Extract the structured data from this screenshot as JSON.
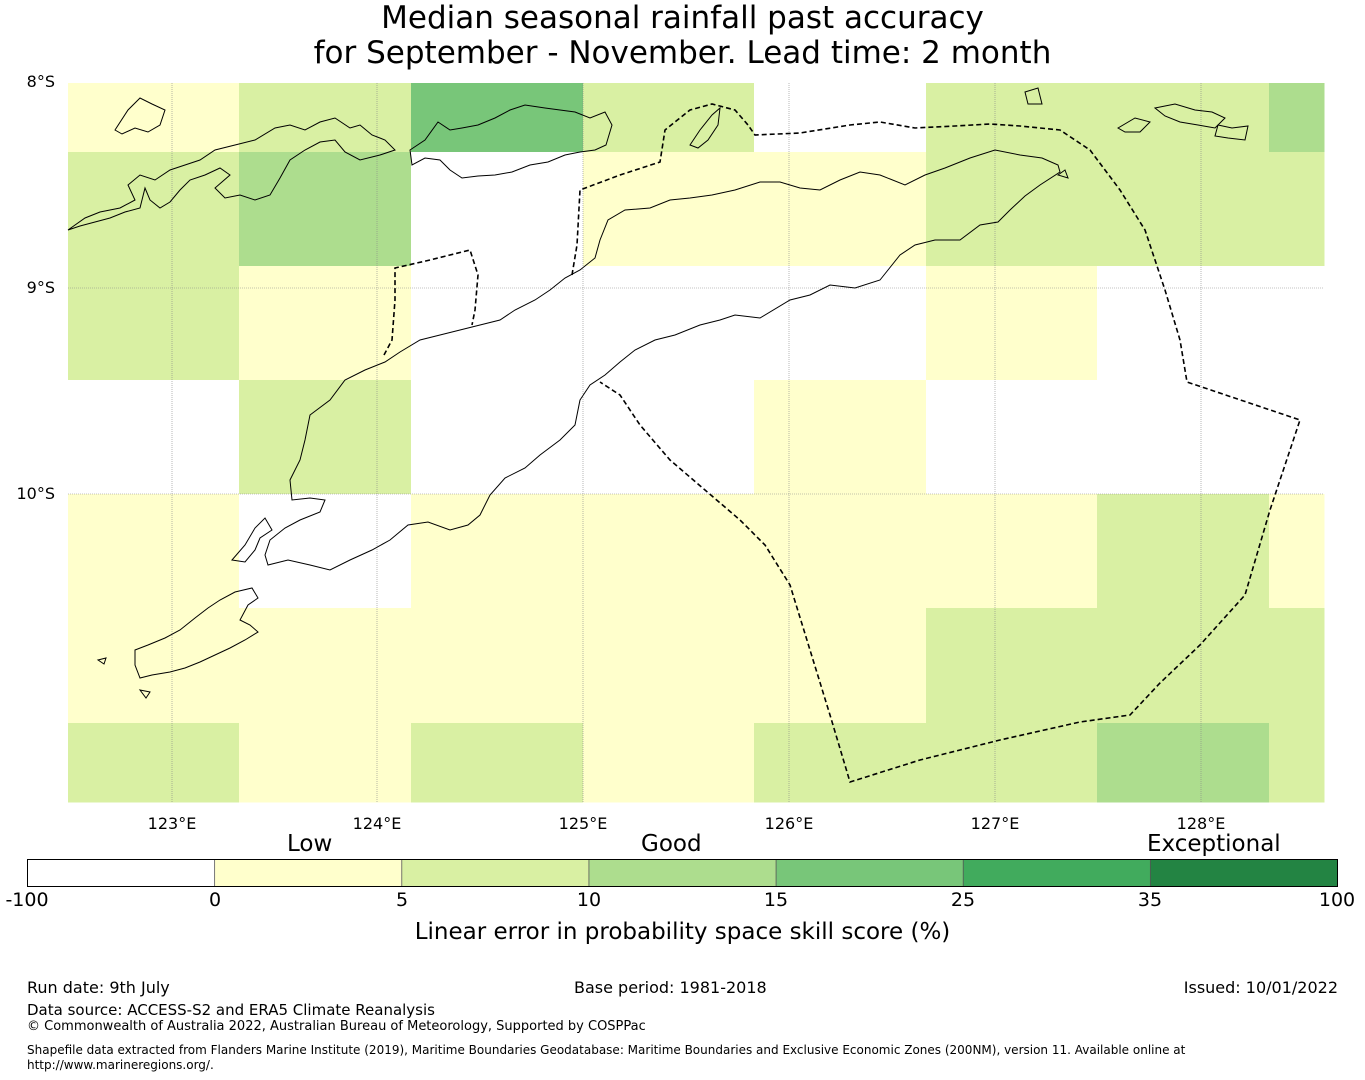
{
  "title": {
    "line1": "Median seasonal rainfall past accuracy",
    "line2": "for September - November. Lead time: 2 month"
  },
  "map": {
    "lat_labels": [
      "8°S",
      "9°S",
      "10°S"
    ],
    "lon_labels": [
      "123°E",
      "124°E",
      "125°E",
      "126°E",
      "127°E",
      "128°E"
    ],
    "grid_colors": {
      "white": "#ffffff",
      "c0_5": "#ffffcc",
      "c5_10": "#d9f0a3",
      "c10_15": "#addd8e",
      "c15_25": "#78c679",
      "c25_35": "#41ab5d",
      "c35_100": "#238443"
    },
    "cells": [
      [
        "c0_5",
        "c5_10",
        "c15_25",
        "c5_10",
        "white",
        "c5_10",
        "c5_10",
        "c10_15"
      ],
      [
        "c5_10",
        "c10_15",
        "white",
        "c0_5",
        "c0_5",
        "c5_10",
        "c5_10",
        "c5_10"
      ],
      [
        "c5_10",
        "c0_5",
        "white",
        "white",
        "white",
        "c0_5",
        "white",
        "white"
      ],
      [
        "white",
        "c5_10",
        "white",
        "white",
        "c0_5",
        "white",
        "white",
        "white"
      ],
      [
        "c0_5",
        "white",
        "c0_5",
        "c0_5",
        "c0_5",
        "c0_5",
        "c5_10",
        "c0_5"
      ],
      [
        "c0_5",
        "c0_5",
        "c0_5",
        "c0_5",
        "c0_5",
        "c5_10",
        "c5_10",
        "c5_10"
      ],
      [
        "c5_10",
        "c0_5",
        "c5_10",
        "c0_5",
        "c5_10",
        "c5_10",
        "c10_15",
        "c5_10"
      ]
    ]
  },
  "legend": {
    "categories": [
      "Low",
      "Good",
      "Exceptional"
    ],
    "ticks": [
      "-100",
      "0",
      "5",
      "10",
      "15",
      "25",
      "35",
      "100"
    ],
    "colors": [
      "#ffffff",
      "#ffffcc",
      "#d9f0a3",
      "#addd8e",
      "#78c679",
      "#41ab5d",
      "#238443"
    ],
    "title": "Linear error in probability space skill score (%)"
  },
  "footer": {
    "run_date": "Run date: 9th July",
    "base_period": "Base period: 1981-2018",
    "issued": "Issued: 10/01/2022",
    "data_source": "Data source: ACCESS-S2 and ERA5 Climate Reanalysis",
    "copyright": "© Commonwealth of Australia 2022, Australian Bureau of Meteorology, Supported by COSPPac",
    "shapefile_line1": "Shapefile data extracted from Flanders Marine Institute (2019), Maritime Boundaries Geodatabase: Maritime Boundaries and Exclusive Economic Zones (200NM), version 11. Available online at",
    "shapefile_line2": "http://www.marineregions.org/."
  }
}
